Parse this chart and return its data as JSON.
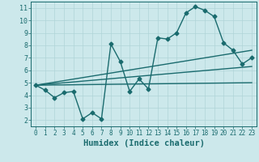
{
  "xlabel": "Humidex (Indice chaleur)",
  "background_color": "#cce8eb",
  "grid_color": "#b0d4d8",
  "line_color": "#1a6b6e",
  "xlim": [
    -0.5,
    23.5
  ],
  "ylim": [
    1.5,
    11.5
  ],
  "xticks": [
    0,
    1,
    2,
    3,
    4,
    5,
    6,
    7,
    8,
    9,
    10,
    11,
    12,
    13,
    14,
    15,
    16,
    17,
    18,
    19,
    20,
    21,
    22,
    23
  ],
  "yticks": [
    2,
    3,
    4,
    5,
    6,
    7,
    8,
    9,
    10,
    11
  ],
  "line1_x": [
    0,
    1,
    2,
    3,
    4,
    5,
    6,
    7,
    8,
    9,
    10,
    11,
    12,
    13,
    14,
    15,
    16,
    17,
    18,
    19,
    20,
    21,
    22,
    23
  ],
  "line1_y": [
    4.8,
    4.4,
    3.8,
    4.2,
    4.3,
    2.1,
    2.6,
    2.1,
    8.1,
    6.7,
    4.3,
    5.3,
    4.5,
    8.6,
    8.5,
    9.0,
    10.6,
    11.1,
    10.8,
    10.3,
    8.2,
    7.6,
    6.5,
    7.0
  ],
  "line2_x": [
    0,
    23
  ],
  "line2_y": [
    4.8,
    6.3
  ],
  "line3_x": [
    0,
    23
  ],
  "line3_y": [
    4.8,
    7.6
  ],
  "line4_x": [
    0,
    23
  ],
  "line4_y": [
    4.8,
    5.0
  ],
  "marker_size": 2.5,
  "line_width": 1.0
}
